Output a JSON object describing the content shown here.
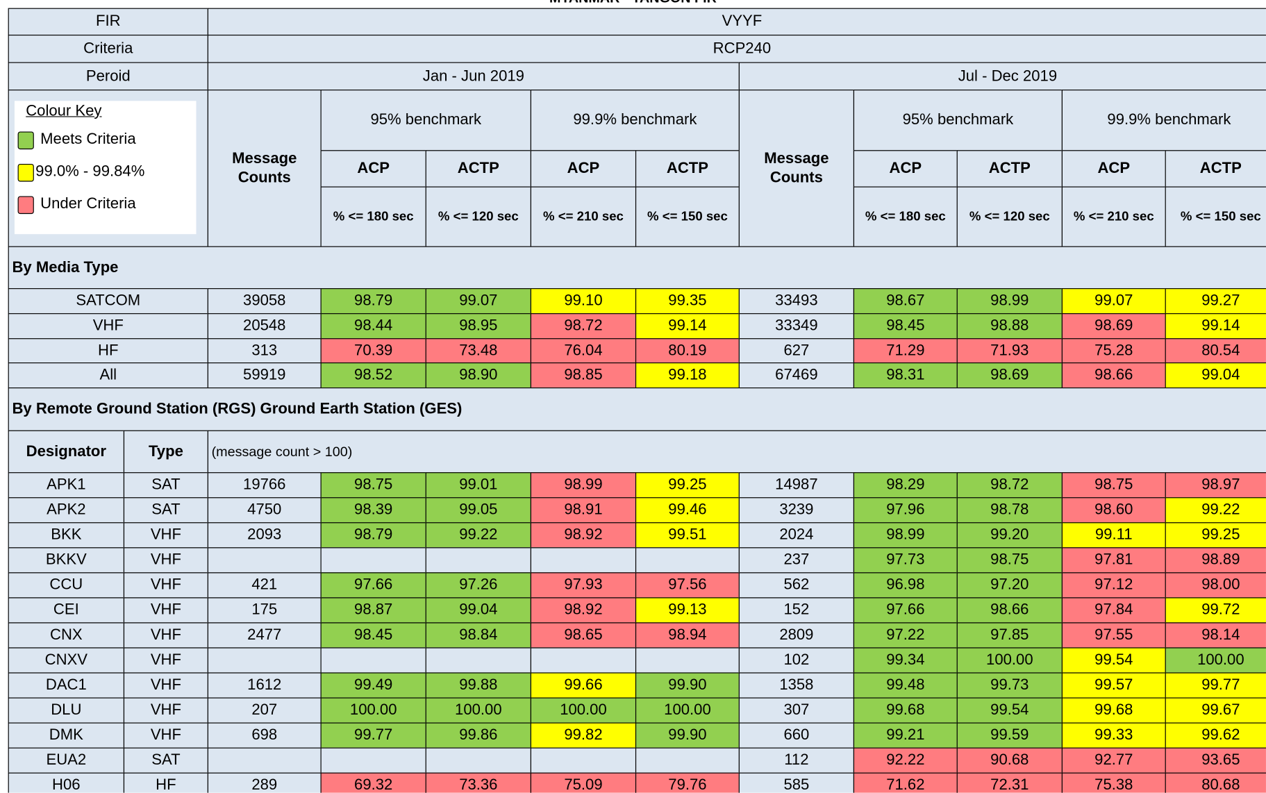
{
  "header": {
    "title": "MYANMAR - YANGON FIR",
    "fir_label": "FIR",
    "fir_value": "VYYF",
    "criteria_label": "Criteria",
    "criteria_value": "RCP240",
    "period_label": "Peroid",
    "periods": [
      "Jan - Jun 2019",
      "Jul - Dec 2019"
    ],
    "message_counts": "Message Counts",
    "benchmarks": [
      "95% benchmark",
      "99.9% benchmark"
    ],
    "measures": [
      "ACP",
      "ACTP",
      "ACP",
      "ACTP"
    ],
    "thresholds": [
      "% <= 180 sec",
      "% <= 120 sec",
      "% <= 210 sec",
      "% <= 150 sec"
    ]
  },
  "colour_key": {
    "title": "Colour Key",
    "items": [
      {
        "label": "Meets Criteria",
        "color": "#92d050"
      },
      {
        "label": "99.0% - 99.84%",
        "color": "#ffff00"
      },
      {
        "label": "Under Criteria",
        "color": "#ff7c80"
      }
    ]
  },
  "media": {
    "title": "By Media Type",
    "rows": [
      {
        "name": "SATCOM",
        "values": [
          "39058",
          "98.79",
          "99.07",
          "99.10",
          "99.35",
          "33493",
          "98.67",
          "98.99",
          "99.07",
          "99.27"
        ],
        "status": [
          null,
          0,
          0,
          1,
          1,
          null,
          0,
          0,
          1,
          1
        ]
      },
      {
        "name": "VHF",
        "values": [
          "20548",
          "98.44",
          "98.95",
          "98.72",
          "99.14",
          "33349",
          "98.45",
          "98.88",
          "98.69",
          "99.14"
        ],
        "status": [
          null,
          0,
          0,
          2,
          1,
          null,
          0,
          0,
          2,
          1
        ]
      },
      {
        "name": "HF",
        "values": [
          "313",
          "70.39",
          "73.48",
          "76.04",
          "80.19",
          "627",
          "71.29",
          "71.93",
          "75.28",
          "80.54"
        ],
        "status": [
          null,
          2,
          2,
          2,
          2,
          null,
          2,
          2,
          2,
          2
        ]
      },
      {
        "name": "All",
        "values": [
          "59919",
          "98.52",
          "98.90",
          "98.85",
          "99.18",
          "67469",
          "98.31",
          "98.69",
          "98.66",
          "99.04"
        ],
        "status": [
          null,
          0,
          0,
          2,
          1,
          null,
          0,
          0,
          2,
          1
        ]
      }
    ]
  },
  "rgs": {
    "title": "By Remote Ground Station (RGS) Ground Earth Station (GES)",
    "designator_label": "Designator",
    "type_label": "Type",
    "note": "(message count > 100)",
    "rows": [
      {
        "name": "APK1",
        "type": "SAT",
        "values": [
          "19766",
          "98.75",
          "99.01",
          "98.99",
          "99.25",
          "14987",
          "98.29",
          "98.72",
          "98.75",
          "98.97"
        ],
        "status": [
          null,
          0,
          0,
          2,
          1,
          null,
          0,
          0,
          2,
          2
        ]
      },
      {
        "name": "APK2",
        "type": "SAT",
        "values": [
          "4750",
          "98.39",
          "99.05",
          "98.91",
          "99.46",
          "3239",
          "97.96",
          "98.78",
          "98.60",
          "99.22"
        ],
        "status": [
          null,
          0,
          0,
          2,
          1,
          null,
          0,
          0,
          2,
          1
        ]
      },
      {
        "name": "BKK",
        "type": "VHF",
        "values": [
          "2093",
          "98.79",
          "99.22",
          "98.92",
          "99.51",
          "2024",
          "98.99",
          "99.20",
          "99.11",
          "99.25"
        ],
        "status": [
          null,
          0,
          0,
          2,
          1,
          null,
          0,
          0,
          1,
          1
        ]
      },
      {
        "name": "BKKV",
        "type": "VHF",
        "values": [
          null,
          null,
          null,
          null,
          null,
          "237",
          "97.73",
          "98.75",
          "97.81",
          "98.89"
        ],
        "status": [
          null,
          null,
          null,
          null,
          null,
          null,
          0,
          0,
          2,
          2
        ]
      },
      {
        "name": "CCU",
        "type": "VHF",
        "values": [
          "421",
          "97.66",
          "97.26",
          "97.93",
          "97.56",
          "562",
          "96.98",
          "97.20",
          "97.12",
          "98.00"
        ],
        "status": [
          null,
          0,
          0,
          2,
          2,
          null,
          0,
          0,
          2,
          2
        ]
      },
      {
        "name": "CEI",
        "type": "VHF",
        "values": [
          "175",
          "98.87",
          "99.04",
          "98.92",
          "99.13",
          "152",
          "97.66",
          "98.66",
          "97.84",
          "99.72"
        ],
        "status": [
          null,
          0,
          0,
          2,
          1,
          null,
          0,
          0,
          2,
          1
        ]
      },
      {
        "name": "CNX",
        "type": "VHF",
        "values": [
          "2477",
          "98.45",
          "98.84",
          "98.65",
          "98.94",
          "2809",
          "97.22",
          "97.85",
          "97.55",
          "98.14"
        ],
        "status": [
          null,
          0,
          0,
          2,
          2,
          null,
          0,
          0,
          2,
          2
        ]
      },
      {
        "name": "CNXV",
        "type": "VHF",
        "values": [
          null,
          null,
          null,
          null,
          null,
          "102",
          "99.34",
          "100.00",
          "99.54",
          "100.00"
        ],
        "status": [
          null,
          null,
          null,
          null,
          null,
          null,
          0,
          0,
          1,
          0
        ]
      },
      {
        "name": "DAC1",
        "type": "VHF",
        "values": [
          "1612",
          "99.49",
          "99.88",
          "99.66",
          "99.90",
          "1358",
          "99.48",
          "99.73",
          "99.57",
          "99.77"
        ],
        "status": [
          null,
          0,
          0,
          1,
          0,
          null,
          0,
          0,
          1,
          1
        ]
      },
      {
        "name": "DLU",
        "type": "VHF",
        "values": [
          "207",
          "100.00",
          "100.00",
          "100.00",
          "100.00",
          "307",
          "99.68",
          "99.54",
          "99.68",
          "99.67"
        ],
        "status": [
          null,
          0,
          0,
          0,
          0,
          null,
          0,
          0,
          1,
          1
        ]
      },
      {
        "name": "DMK",
        "type": "VHF",
        "values": [
          "698",
          "99.77",
          "99.86",
          "99.82",
          "99.90",
          "660",
          "99.21",
          "99.59",
          "99.33",
          "99.62"
        ],
        "status": [
          null,
          0,
          0,
          1,
          0,
          null,
          0,
          0,
          1,
          1
        ]
      },
      {
        "name": "EUA2",
        "type": "SAT",
        "values": [
          null,
          null,
          null,
          null,
          null,
          "112",
          "92.22",
          "90.68",
          "92.77",
          "93.65"
        ],
        "status": [
          null,
          null,
          null,
          null,
          null,
          null,
          2,
          2,
          2,
          2
        ]
      },
      {
        "name": "H06",
        "type": "HF",
        "values": [
          "289",
          "69.32",
          "73.36",
          "75.09",
          "79.76",
          "585",
          "71.62",
          "72.31",
          "75.38",
          "80.68"
        ],
        "status": [
          null,
          2,
          2,
          2,
          2,
          null,
          2,
          2,
          2,
          2
        ]
      }
    ]
  }
}
